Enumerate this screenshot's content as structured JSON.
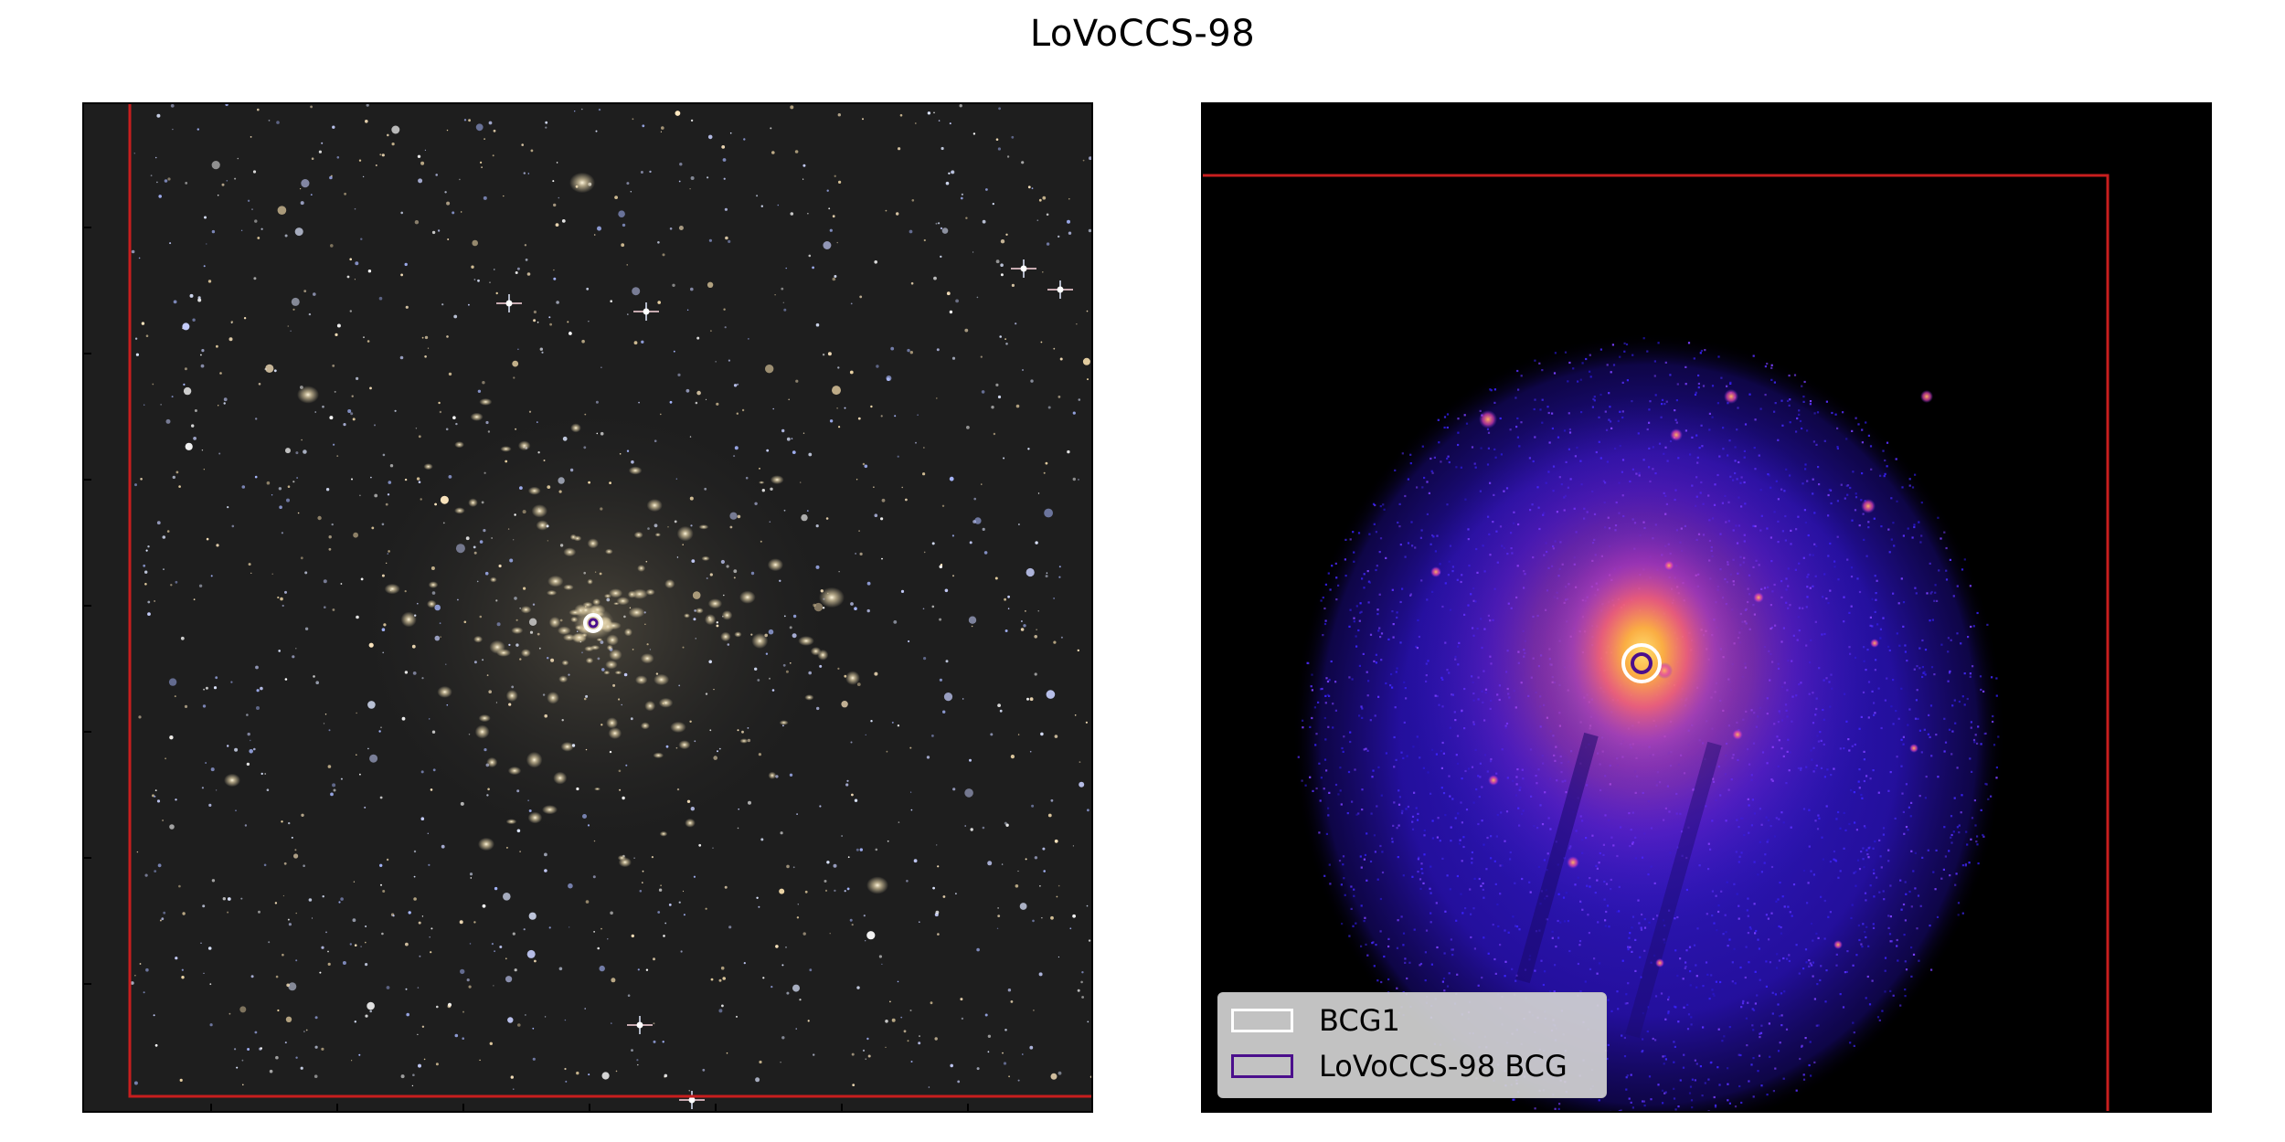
{
  "title": "LoVoCCS-98",
  "legend": {
    "items": [
      {
        "label": "BCG1",
        "color": "#ffffff"
      },
      {
        "label": "LoVoCCS-98 BCG",
        "color": "#4b0f8c"
      }
    ]
  },
  "colors": {
    "frame_red": "#c81e1e",
    "optical_background": "#1e1e1e",
    "xray_background": "#000000",
    "bcg_ring_white": "#ffffff",
    "bcg_ring_purple": "#4b0f8c"
  }
}
